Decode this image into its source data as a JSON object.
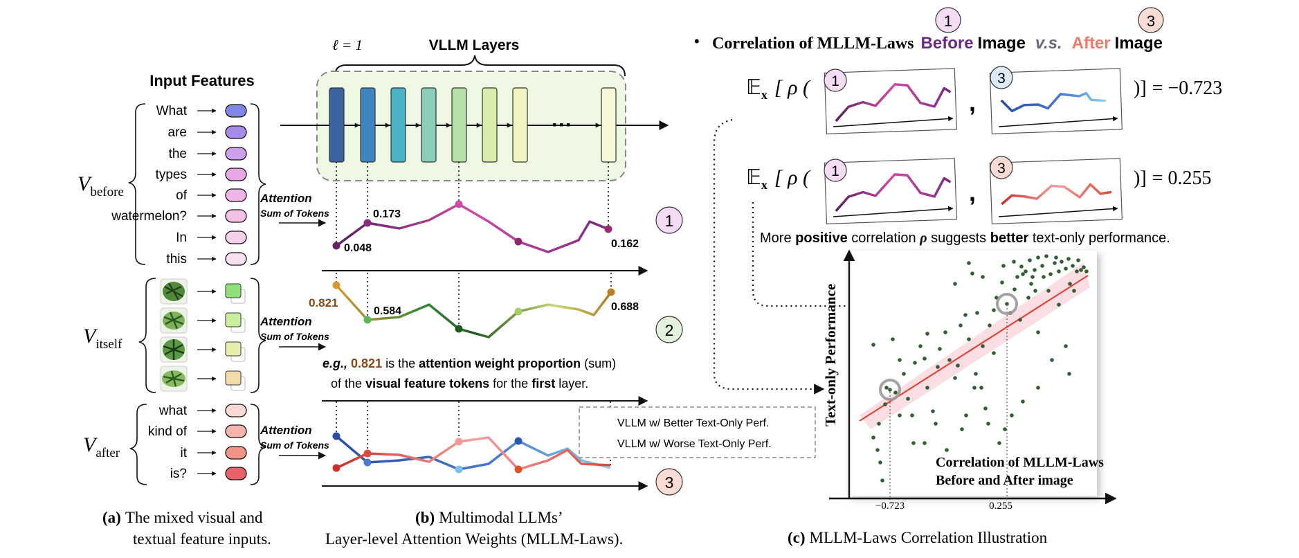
{
  "panel_a": {
    "title": "Input Features",
    "v_before": "V",
    "v_before_sub": "before",
    "v_itself": "V",
    "v_itself_sub": "itself",
    "v_after": "V",
    "v_after_sub": "after",
    "before_words": [
      "What",
      "are",
      "the",
      "types",
      "of",
      "watermelon?",
      "In",
      "this"
    ],
    "after_words": [
      "what",
      "kind of",
      "it",
      "is?"
    ],
    "attention_label": "Attention",
    "sum_label": "Sum of Tokens",
    "caption_bold": "(a)",
    "caption_line1": "The mixed visual and",
    "caption_line2": "textual feature inputs."
  },
  "panel_b": {
    "layers_title": "VLLM Layers",
    "ell_label": "ℓ = 1",
    "ellipsis": "···",
    "val_1a": "0.048",
    "val_1b": "0.173",
    "val_1c": "0.162",
    "val_2a": "0.821",
    "val_2b": "0.584",
    "val_2c": "0.688",
    "circle_1": "1",
    "circle_2": "2",
    "circle_3": "3",
    "eg_prefix": "e.g.,",
    "eg_value": "0.821",
    "eg_is": "is the",
    "eg_bold1": "attention weight proportion",
    "eg_paren": "(sum)",
    "eg_line2_pre": "of the",
    "eg_bold2": "visual feature tokens",
    "eg_line2_mid": "for the",
    "eg_bold3": "first",
    "eg_line2_end": "layer.",
    "legend_better": "VLLM w/ Better Text-Only Perf.",
    "legend_worse": "VLLM w/ Worse Text-Only Perf.",
    "caption_bold": "(b)",
    "caption_line1": "Multimodal LLMs’",
    "caption_line2": "Layer-level Attention Weights (MLLM-Laws)."
  },
  "panel_c": {
    "bullet": "•",
    "header_pre": "Correlation of MLLM-Laws",
    "header_before": "Before",
    "header_image1": "Image",
    "header_vs": "v.s.",
    "header_after": "After",
    "header_image2": "Image",
    "expectation": "𝔼",
    "expectation_sub": "x",
    "rho_open": "[ ρ (",
    "comma": ",",
    "close_bracket": ")]",
    "eq1_value": "= −0.723",
    "eq2_value": "= 0.255",
    "positive_pre": "More",
    "positive_bold": "positive",
    "positive_mid": "correlation",
    "positive_rho": "ρ",
    "positive_suggests": "suggests",
    "positive_bold2": "better",
    "positive_end": "text-only performance.",
    "y_axis_label": "Text-only Performance",
    "x_tick_1": "−0.723",
    "x_tick_2": "0.255",
    "inset_title_1": "Correlation of MLLM-Laws",
    "inset_title_2": "Before and After image",
    "caption_bold": "(c)",
    "caption_text": "MLLM-Laws Correlation Illustration"
  },
  "colors": {
    "before": "#7a2a7e",
    "after": "#e0625a",
    "better": "#e24a3a",
    "worse": "#3a6cc8",
    "scatter": "#2f5f32",
    "trend": "#e0463a"
  }
}
